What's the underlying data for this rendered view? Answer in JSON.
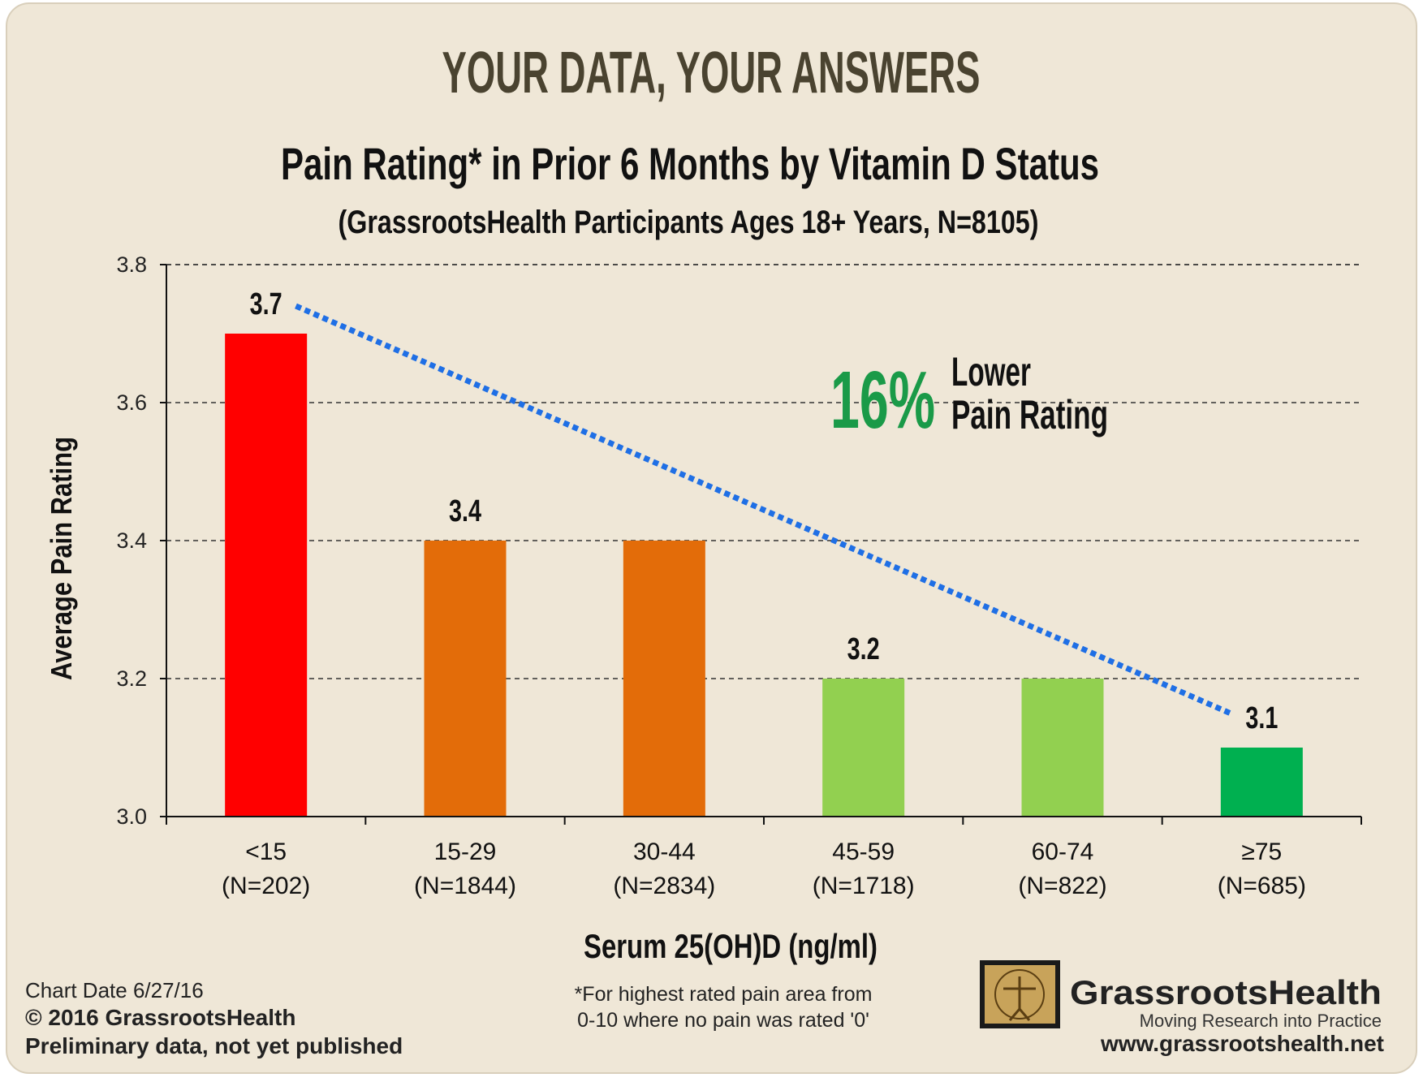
{
  "chart_data": {
    "type": "bar",
    "header": "YOUR DATA, YOUR ANSWERS",
    "title": "Pain Rating* in Prior 6 Months by Vitamin D Status",
    "subtitle": "(GrassrootsHealth Participants Ages 18+ Years, N=8105)",
    "y_label": "Average Pain Rating",
    "x_label": "Serum 25(OH)D (ng/ml)",
    "categories": [
      "<15",
      "15-29",
      "30-44",
      "45-59",
      "60-74",
      "≥75"
    ],
    "category_counts": [
      "(N=202)",
      "(N=1844)",
      "(N=2834)",
      "(N=1718)",
      "(N=822)",
      "(N=685)"
    ],
    "values": [
      3.7,
      3.4,
      3.4,
      3.2,
      3.2,
      3.1
    ],
    "value_labels": [
      "3.7",
      "3.4",
      null,
      "3.2",
      null,
      "3.1"
    ],
    "colors": [
      "#ff0000",
      "#e36c09",
      "#e36c09",
      "#92d050",
      "#92d050",
      "#00b050"
    ],
    "ylim": [
      3.0,
      3.8
    ],
    "yticks": [
      {
        "value": 3,
        "label": "3.0"
      },
      3.2,
      3.4,
      3.6,
      3.8
    ],
    "grid": true,
    "trendline": {
      "x": [
        0.15,
        4.84
      ],
      "values": [
        3.74,
        3.15
      ],
      "color": "#1f6fe5"
    },
    "annotation": {
      "percent": "16%",
      "line1": "Lower",
      "line2": "Pain Rating",
      "color": "#1a9a48"
    },
    "footer": {
      "chart_date": "Chart Date 6/27/16",
      "copyright": "© 2016 GrassrootsHealth",
      "note": "Preliminary data, not yet published",
      "footnote_1": "*For highest rated pain area from",
      "footnote_2": "0-10 where no pain was rated '0'",
      "logo_name": "GrassrootsHealth",
      "logo_tagline": "Moving Research into Practice",
      "url": "www.grassrootshealth.net"
    }
  }
}
